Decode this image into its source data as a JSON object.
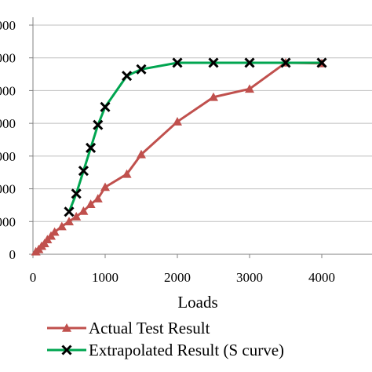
{
  "chart_data": {
    "type": "line",
    "title": "",
    "xlabel": "Loads",
    "ylabel": "",
    "xlim": [
      0,
      4000
    ],
    "ylim": [
      0,
      7000
    ],
    "x_ticks": [
      "0",
      "1000",
      "2000",
      "3000",
      "4000"
    ],
    "y_ticks": [
      "0",
      "000",
      "000",
      "000",
      "000",
      "000",
      "000",
      "000"
    ],
    "grid": "horizontal",
    "legend_position": "bottom",
    "series": [
      {
        "name": "Actual Test Result",
        "color": "#c0504d",
        "marker": "triangle",
        "x": [
          40,
          80,
          120,
          160,
          200,
          250,
          300,
          400,
          500,
          600,
          700,
          800,
          900,
          1000,
          1300,
          1500,
          2000,
          2500,
          3000,
          3500,
          4000
        ],
        "y": [
          80,
          150,
          250,
          330,
          450,
          560,
          680,
          850,
          1000,
          1150,
          1320,
          1530,
          1700,
          2050,
          2450,
          3050,
          4050,
          4800,
          5050,
          5850,
          5830
        ]
      },
      {
        "name": "Extrapolated Result (S curve)",
        "color": "#00a550",
        "marker": "x",
        "x": [
          500,
          600,
          700,
          800,
          900,
          1000,
          1300,
          1500,
          2000,
          2500,
          3000,
          3500,
          4000
        ],
        "y": [
          1300,
          1850,
          2550,
          3250,
          3950,
          4500,
          5450,
          5650,
          5850,
          5850,
          5850,
          5850,
          5850
        ]
      }
    ]
  }
}
